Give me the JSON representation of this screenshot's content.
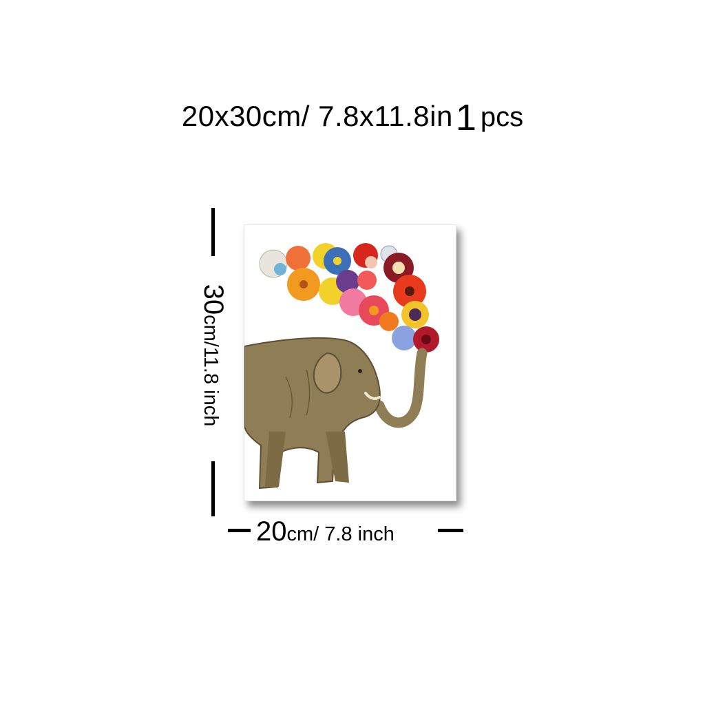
{
  "headline": {
    "dimensions": "20x30cm/ 7.8x11.8in",
    "quantity_number": "1",
    "quantity_unit": "pcs"
  },
  "height_label": {
    "number": "30",
    "unit": "cm/11.8 inch"
  },
  "width_label": {
    "number": "20",
    "unit": "cm/ 7.8 inch"
  },
  "colors": {
    "text": "#000000",
    "background": "#ffffff",
    "elephant": "#8f7d55",
    "flower_red": "#d9261c",
    "flower_orange": "#f29a1f",
    "flower_yellow": "#f2d22a",
    "flower_blue": "#3b6fb8",
    "flower_pink": "#e85a7a",
    "flower_purple": "#6b3d8f"
  },
  "poster": {
    "artwork": "elephant-with-flowers-illustration"
  }
}
